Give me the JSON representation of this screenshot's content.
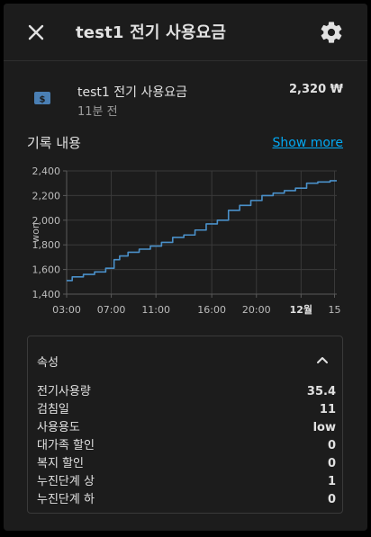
{
  "dialog": {
    "title": "test1 전기 사용요금",
    "entity": {
      "name": "test1 전기 사용요금",
      "time": "11분 전",
      "value": "2,320 ₩"
    },
    "history": {
      "title": "기록 내용",
      "show_more": "Show more"
    },
    "attributes": {
      "title": "속성",
      "items": [
        {
          "key": "전기사용량",
          "value": "35.4"
        },
        {
          "key": "검침일",
          "value": "11"
        },
        {
          "key": "사용용도",
          "value": "low"
        },
        {
          "key": "대가족 할인",
          "value": "0"
        },
        {
          "key": "복지 할인",
          "value": "0"
        },
        {
          "key": "누진단계 상",
          "value": "1"
        },
        {
          "key": "누진단계 하",
          "value": "0"
        }
      ]
    }
  },
  "colors": {
    "accent": "#03a9f4",
    "line": "#4a90c9",
    "icon_badge": "#4a7fb4"
  },
  "chart_data": {
    "type": "line",
    "ylabel": "won",
    "ylim": [
      1400,
      2400
    ],
    "yticks": [
      1400,
      1600,
      1800,
      2000,
      2200,
      2400
    ],
    "ytick_labels": [
      "1,400",
      "1,600",
      "1,800",
      "2,000",
      "2,200",
      "2,400"
    ],
    "xlim": [
      3,
      27.2
    ],
    "xticks": [
      3,
      7,
      11,
      16,
      20,
      24,
      27
    ],
    "xtick_labels": [
      "03:00",
      "07:00",
      "11:00",
      "16:00",
      "20:00",
      "12월",
      "15"
    ],
    "grid": true,
    "series": [
      {
        "x": [
          3,
          4,
          5,
          6,
          7,
          7.5,
          8,
          9,
          10,
          11,
          12,
          13,
          14,
          15,
          16,
          17,
          18,
          19,
          20,
          21,
          22,
          23,
          24,
          25,
          26,
          27.2
        ],
        "values": [
          1510,
          1540,
          1560,
          1580,
          1610,
          1680,
          1710,
          1740,
          1765,
          1790,
          1820,
          1860,
          1880,
          1920,
          1970,
          2000,
          2080,
          2120,
          2160,
          2200,
          2220,
          2240,
          2260,
          2300,
          2310,
          2320
        ]
      }
    ]
  }
}
